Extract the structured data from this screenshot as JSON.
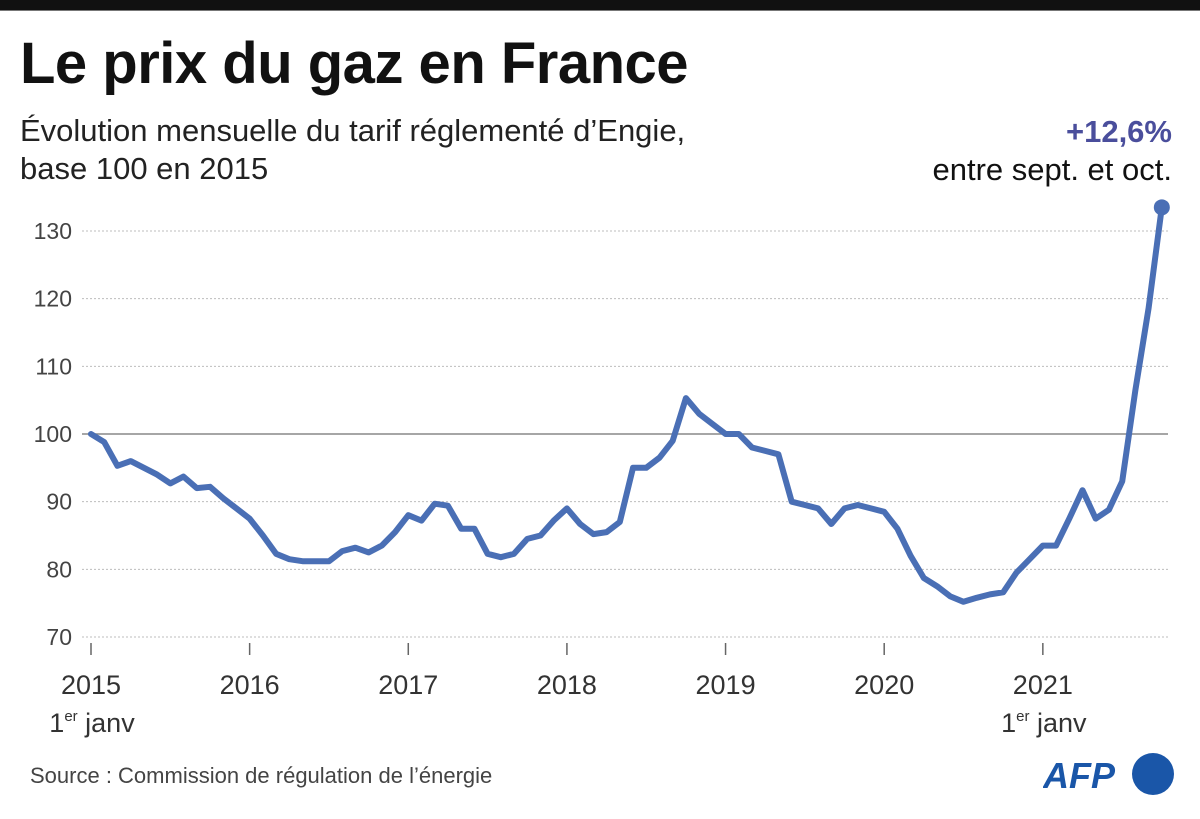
{
  "header": {
    "title": "Le prix du gaz en France",
    "subtitle_line1": "Évolution mensuelle du tarif réglementé d’Engie,",
    "subtitle_line2": "base 100 en 2015"
  },
  "annotation": {
    "value": "+12,6%",
    "text": "entre sept. et oct."
  },
  "footer": {
    "source": "Source : Commission de régulation de l’énergie",
    "logo": "AFP"
  },
  "colors": {
    "line": "#4a6fb5",
    "annotation": "#4a4e9c",
    "logo": "#1a56a8",
    "baseline": "#888888",
    "grid": "#bdbdbd"
  },
  "chart_data": {
    "type": "line",
    "title": "Le prix du gaz en France",
    "subtitle": "Évolution mensuelle du tarif réglementé d’Engie, base 100 en 2015",
    "xlabel": "",
    "ylabel": "",
    "ylim": [
      70,
      130
    ],
    "yticks": [
      70,
      80,
      90,
      100,
      110,
      120,
      130
    ],
    "reference_line": 100,
    "grid": "horizontal dotted",
    "x_start": "2015-01",
    "x_end": "2021-10",
    "xticks": [
      {
        "label": "2015",
        "sublabel": "1er janv",
        "month_index": 0
      },
      {
        "label": "2016",
        "sublabel": "",
        "month_index": 12
      },
      {
        "label": "2017",
        "sublabel": "",
        "month_index": 24
      },
      {
        "label": "2018",
        "sublabel": "",
        "month_index": 36
      },
      {
        "label": "2019",
        "sublabel": "",
        "month_index": 48
      },
      {
        "label": "2020",
        "sublabel": "",
        "month_index": 60
      },
      {
        "label": "2021",
        "sublabel": "1er janv",
        "month_index": 72
      }
    ],
    "series": [
      {
        "name": "Tarif réglementé Engie (base 100 en 2015)",
        "values": [
          100,
          98.8,
          95.3,
          96,
          95,
          94,
          92.7,
          93.7,
          92,
          92.2,
          90.5,
          89,
          87.5,
          85,
          82.3,
          81.5,
          81.2,
          81.2,
          81.2,
          82.7,
          83.2,
          82.5,
          83.5,
          85.5,
          88,
          87.2,
          89.7,
          89.4,
          86,
          86,
          82.3,
          81.8,
          82.3,
          84.5,
          85,
          87.2,
          89,
          86.7,
          85.2,
          85.5,
          87,
          95,
          95,
          96.5,
          99,
          105.3,
          103,
          101.5,
          100,
          100,
          98,
          97.5,
          97,
          90,
          89.5,
          89,
          86.7,
          89,
          89.5,
          89,
          88.5,
          86,
          82,
          78.7,
          77.5,
          76,
          75.2,
          75.8,
          76.3,
          76.6,
          79.5,
          81.5,
          83.5,
          83.5,
          87.5,
          91.7,
          87.5,
          88.8,
          93,
          106.5,
          118.6,
          133.5
        ]
      }
    ],
    "annotations": [
      {
        "text": "+12,6%",
        "subtext": "entre sept. et oct.",
        "at_month_index": 81
      }
    ]
  }
}
